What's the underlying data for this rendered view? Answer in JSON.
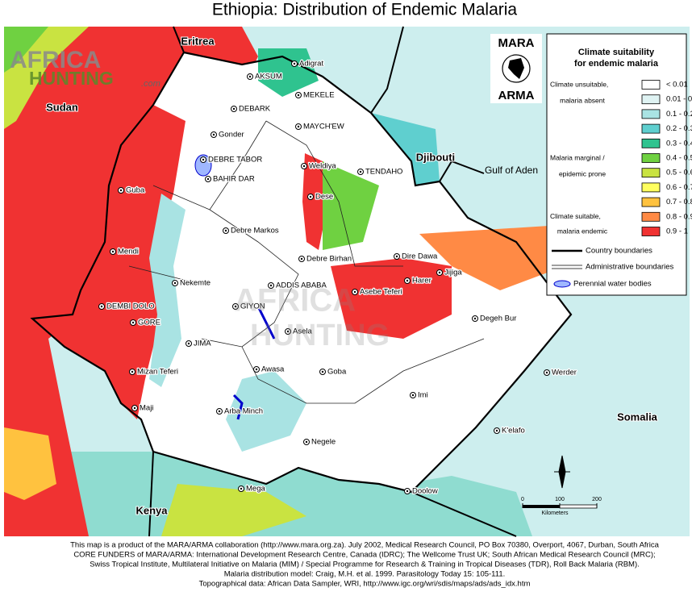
{
  "title": "Ethiopia: Distribution of Endemic Malaria",
  "watermark": {
    "brand": "AFRICA",
    "brand2": "HUNTING",
    "domain": ".com"
  },
  "logo": {
    "top": "MARA",
    "bottom": "ARMA"
  },
  "countries": [
    "Eritrea",
    "Sudan",
    "Djibouti",
    "Gulf of Aden",
    "Somalia",
    "Kenya"
  ],
  "legend": {
    "title": [
      "Climate suitability",
      "for endemic malaria"
    ],
    "groups": [
      [
        "Climate unsuitable,",
        "malaria absent"
      ],
      [
        "Malaria marginal /",
        "epidemic prone"
      ],
      [
        "Climate suitable,",
        "malaria endemic"
      ]
    ],
    "classes": [
      {
        "label": "< 0.01",
        "color": "#ffffff"
      },
      {
        "label": "0.01 - 0.1",
        "color": "#dff3f3"
      },
      {
        "label": "0.1 - 0.2",
        "color": "#a9e3e3"
      },
      {
        "label": "0.2 - 0.3",
        "color": "#5fcfcf"
      },
      {
        "label": "0.3 - 0.4",
        "color": "#2fc38f"
      },
      {
        "label": "0.4 - 0.5",
        "color": "#6fd141"
      },
      {
        "label": "0.5 - 0.6",
        "color": "#c9e341"
      },
      {
        "label": "0.6 - 0.7",
        "color": "#ffff5f"
      },
      {
        "label": "0.7 - 0.8",
        "color": "#ffc23f"
      },
      {
        "label": "0.8 - 0.9",
        "color": "#ff8a45"
      },
      {
        "label": "0.9 - 1",
        "color": "#f03232"
      }
    ],
    "items": [
      "Country boundaries",
      "Administrative boundaries",
      "Perennial water bodies"
    ]
  },
  "towns": [
    "Adigrat",
    "AKSUM",
    "MEKELE",
    "DEBARK",
    "MAYCH'EW",
    "Gonder",
    "DEBRE TABOR",
    "BAHIR DAR",
    "Weldiya",
    "TENDAHO",
    "Dese",
    "Guba",
    "Debre Markos",
    "Dire Dawa",
    "Debre Birhan",
    "Mendi",
    "Jijiga",
    "Harer",
    "ADDIS ABABA",
    "Nekemte",
    "Asebe Teferi",
    "DEMBI DOLO",
    "GIYON",
    "Degeh Bur",
    "GORE",
    "Asela",
    "JIMA",
    "Awasa",
    "Goba",
    "Mizan Teferi",
    "Werder",
    "Imi",
    "Maji",
    "Arba Minch",
    "K'elafo",
    "Negele",
    "Mega",
    "Doolow"
  ],
  "scale_bar": {
    "ticks": [
      0,
      100,
      200
    ],
    "unit": "Kilometers"
  },
  "footer": [
    "This map is a product of the MARA/ARMA collaboration (http://www.mara.org.za).  July 2002, Medical Research Council, PO Box 70380, Overport, 4067, Durban, South Africa",
    "CORE FUNDERS of MARA/ARMA: International Development Research Centre, Canada (IDRC); The Wellcome Trust UK; South African Medical Research Council (MRC);",
    "Swiss Tropical Institute, Multilateral Initiative on Malaria (MIM) / Special Programme for Research & Training in Tropical Diseases (TDR), Roll Back Malaria (RBM).",
    "Malaria distribution model: Craig, M.H. et al. 1999.  Parasitology Today 15: 105-111.",
    "Topographical data: African Data Sampler, WRI, http://www.igc.org/wri/sdis/maps/ads/ads_idx.htm"
  ]
}
